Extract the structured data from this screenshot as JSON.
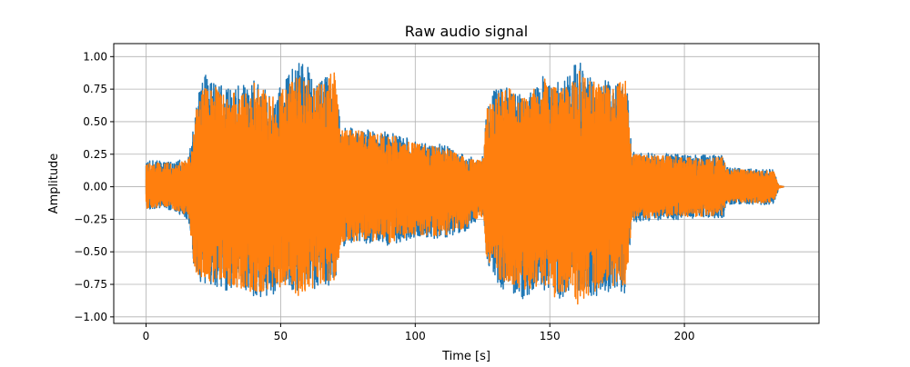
{
  "chart_data": {
    "type": "line",
    "title": "Raw audio signal",
    "xlabel": "Time [s]",
    "ylabel": "Amplitude",
    "xlim": [
      -12,
      250
    ],
    "ylim": [
      -1.05,
      1.1
    ],
    "x_ticks": [
      0,
      50,
      100,
      150,
      200
    ],
    "y_ticks": [
      -1.0,
      -0.75,
      -0.5,
      -0.25,
      0.0,
      0.25,
      0.5,
      0.75,
      1.0
    ],
    "y_tick_labels": [
      "−1.00",
      "−0.75",
      "−0.50",
      "−0.25",
      "0.00",
      "0.25",
      "0.50",
      "0.75",
      "1.00"
    ],
    "grid": true,
    "series": [
      {
        "color": "#1f77b4",
        "envelope": {
          "t": [
            0,
            1.5,
            3,
            10,
            15.5,
            17,
            18,
            22,
            30,
            40,
            48,
            53,
            57,
            65,
            70,
            71.5,
            72.5,
            80,
            90,
            100,
            110,
            119,
            124,
            125.5,
            126.5,
            132,
            140,
            148,
            154,
            158,
            160.5,
            164,
            170,
            178.5,
            179.5,
            180.5,
            190,
            200,
            205,
            214.5,
            215.5,
            222,
            230,
            233,
            234.5,
            235,
            237
          ],
          "pos": [
            0.23,
            0.2,
            0.2,
            0.19,
            0.22,
            0.35,
            0.62,
            0.86,
            0.75,
            0.82,
            0.7,
            0.9,
            0.98,
            0.85,
            0.88,
            0.6,
            0.46,
            0.45,
            0.43,
            0.35,
            0.33,
            0.24,
            0.22,
            0.25,
            0.62,
            0.85,
            0.7,
            0.86,
            0.79,
            0.88,
            1.0,
            0.85,
            0.82,
            0.85,
            0.5,
            0.27,
            0.26,
            0.25,
            0.24,
            0.25,
            0.15,
            0.14,
            0.13,
            0.14,
            0.05,
            0.01,
            0.0
          ],
          "neg": [
            -0.18,
            -0.17,
            -0.17,
            -0.18,
            -0.25,
            -0.45,
            -0.7,
            -0.75,
            -0.8,
            -0.86,
            -0.82,
            -0.8,
            -0.82,
            -0.78,
            -0.75,
            -0.6,
            -0.47,
            -0.43,
            -0.45,
            -0.39,
            -0.4,
            -0.34,
            -0.24,
            -0.3,
            -0.6,
            -0.8,
            -0.86,
            -0.8,
            -0.87,
            -0.78,
            -0.85,
            -0.88,
            -0.8,
            -0.83,
            -0.5,
            -0.27,
            -0.26,
            -0.25,
            -0.25,
            -0.24,
            -0.14,
            -0.13,
            -0.14,
            -0.13,
            -0.05,
            -0.01,
            0.0
          ]
        }
      },
      {
        "color": "#ff7f0e",
        "envelope": {
          "t": [
            0,
            1.5,
            3,
            10,
            15.5,
            17,
            18,
            22,
            30,
            40,
            48,
            53,
            57,
            65,
            70,
            71.5,
            72.5,
            80,
            90,
            100,
            110,
            119,
            124,
            125.5,
            126.5,
            132,
            140,
            148,
            154,
            158,
            160.5,
            164,
            170,
            178.5,
            179.5,
            180.5,
            190,
            200,
            205,
            214.5,
            215.5,
            222,
            230,
            233,
            234.5,
            235,
            237
          ],
          "pos": [
            0.22,
            0.19,
            0.19,
            0.18,
            0.2,
            0.33,
            0.6,
            0.82,
            0.72,
            0.8,
            0.68,
            0.85,
            0.88,
            0.8,
            0.9,
            0.58,
            0.44,
            0.43,
            0.41,
            0.33,
            0.31,
            0.22,
            0.2,
            0.23,
            0.6,
            0.82,
            0.68,
            0.83,
            0.76,
            0.85,
            0.92,
            0.82,
            0.79,
            0.82,
            0.48,
            0.25,
            0.24,
            0.23,
            0.22,
            0.23,
            0.14,
            0.13,
            0.12,
            0.13,
            0.04,
            0.01,
            0.0
          ],
          "neg": [
            -0.17,
            -0.16,
            -0.16,
            -0.17,
            -0.23,
            -0.43,
            -0.65,
            -0.72,
            -0.76,
            -0.82,
            -0.78,
            -0.76,
            -0.85,
            -0.74,
            -0.72,
            -0.57,
            -0.45,
            -0.41,
            -0.43,
            -0.37,
            -0.38,
            -0.32,
            -0.22,
            -0.28,
            -0.57,
            -0.76,
            -0.82,
            -0.76,
            -0.9,
            -0.74,
            -0.93,
            -0.84,
            -0.76,
            -0.79,
            -0.48,
            -0.25,
            -0.24,
            -0.23,
            -0.23,
            -0.22,
            -0.13,
            -0.12,
            -0.13,
            -0.12,
            -0.04,
            -0.01,
            0.0
          ]
        }
      }
    ]
  }
}
